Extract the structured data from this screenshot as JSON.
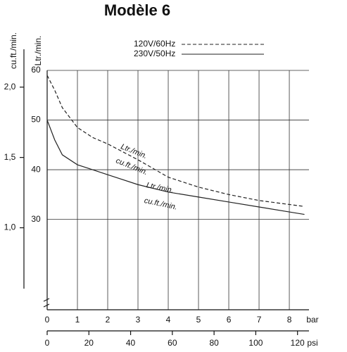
{
  "chart_data": {
    "type": "line",
    "title": "Modèle 6",
    "x": [
      0,
      0.25,
      0.5,
      1,
      1.5,
      2,
      3,
      4,
      5,
      6,
      7,
      8,
      8.5
    ],
    "series": [
      {
        "name": "120V/60Hz",
        "color": "#222222",
        "dash": true,
        "values": [
          59,
          56,
          52.5,
          48.5,
          46.5,
          45.2,
          42,
          38.5,
          36.5,
          35,
          33.8,
          33,
          32.6
        ]
      },
      {
        "name": "230V/50Hz",
        "color": "#222222",
        "dash": false,
        "values": [
          50,
          46,
          43,
          41,
          40,
          39,
          37,
          35.5,
          34.5,
          33.5,
          32.5,
          31.5,
          31
        ]
      }
    ],
    "xlabel": "bar",
    "x2label": "psi",
    "xlim": [
      0,
      8.65
    ],
    "xticks": [
      0,
      1,
      2,
      3,
      4,
      5,
      6,
      7,
      8
    ],
    "x2lim": [
      0,
      125.5
    ],
    "x2ticks": [
      0,
      20,
      40,
      60,
      80,
      100,
      120
    ],
    "ylabel": "Ltr./min.",
    "ylim": [
      11.8,
      60
    ],
    "yticks": [
      30,
      40,
      50,
      60
    ],
    "y2label": "cu.ft./min.",
    "y2lim": [
      0.417,
      2.119
    ],
    "y2ticks": [
      {
        "value": 1.0,
        "label": "1,0"
      },
      {
        "value": 1.5,
        "label": "1,5"
      },
      {
        "value": 2.0,
        "label": "2,0"
      }
    ],
    "annotations": [
      "Ltr./min.",
      "cu.ft./min.",
      "Ltr./min.",
      "cu.ft./min."
    ],
    "grid": true
  }
}
